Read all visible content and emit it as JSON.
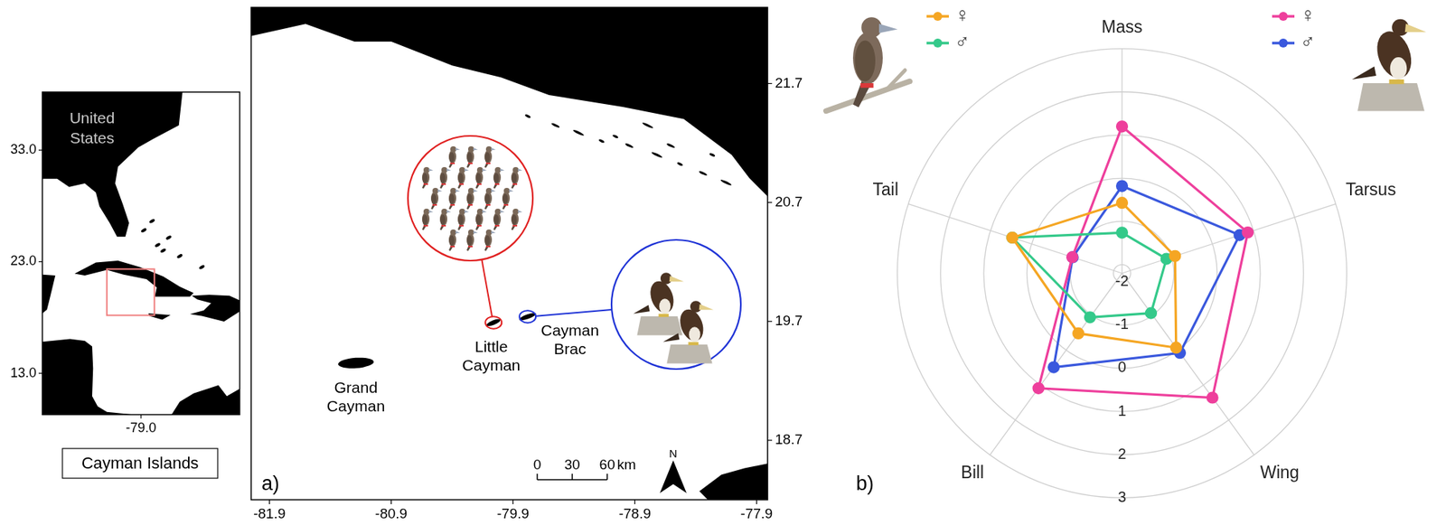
{
  "panel_a": {
    "label": "a)",
    "inset": {
      "country_label": "United States",
      "caption": "Cayman Islands",
      "xlim": [
        -87.8,
        -70.2
      ],
      "ylim": [
        9.3,
        38.2
      ],
      "xticks": [
        {
          "value": -79,
          "label": "-79.0"
        }
      ],
      "yticks": [
        {
          "value": 13,
          "label": "13.0"
        },
        {
          "value": 23,
          "label": "23.0"
        },
        {
          "value": 33,
          "label": "33.0"
        }
      ]
    },
    "map": {
      "xlim": [
        -82.05,
        -77.81
      ],
      "ylim": [
        18.2,
        22.34
      ],
      "xticks": [
        -81.9,
        -80.9,
        -79.9,
        -78.9,
        -77.9
      ],
      "yticks": [
        18.7,
        19.7,
        20.7,
        21.7
      ],
      "islands": [
        {
          "name": "Grand Cayman",
          "lon": -81.19,
          "lat": 19.35
        },
        {
          "name": "Little Cayman",
          "lon": -80.06,
          "lat": 19.69
        },
        {
          "name": "Cayman Brac",
          "lon": -79.78,
          "lat": 19.74
        }
      ],
      "north_label": "N",
      "scale_bar": {
        "ticks": [
          0,
          30,
          60
        ],
        "unit": "km"
      }
    }
  },
  "chart_data": {
    "type": "radar",
    "annotations": [
      "b)"
    ],
    "categories": [
      "Mass",
      "Tarsus",
      "Wing",
      "Bill",
      "Tail"
    ],
    "series": [
      {
        "name": "♀",
        "color": "#f5a623",
        "values": [
          -0.57,
          -0.91,
          -0.07,
          -0.48,
          0.47
        ]
      },
      {
        "name": "♂",
        "color": "#34c98a",
        "values": [
          -1.26,
          -1.12,
          -1.06,
          -0.94,
          0.47
        ]
      },
      {
        "name": "♀",
        "color": "#ee3f9c",
        "values": [
          1.2,
          0.86,
          1.36,
          1.09,
          -0.99
        ]
      },
      {
        "name": "♂",
        "color": "#3a58dd",
        "values": [
          -0.18,
          0.66,
          0.08,
          0.49,
          -1.0
        ]
      }
    ],
    "ylim": [
      -2.2,
      3
    ],
    "yticks": [
      -2,
      -1,
      0,
      1,
      2,
      3
    ],
    "grid": true,
    "legend": "top",
    "marker": "circle"
  }
}
